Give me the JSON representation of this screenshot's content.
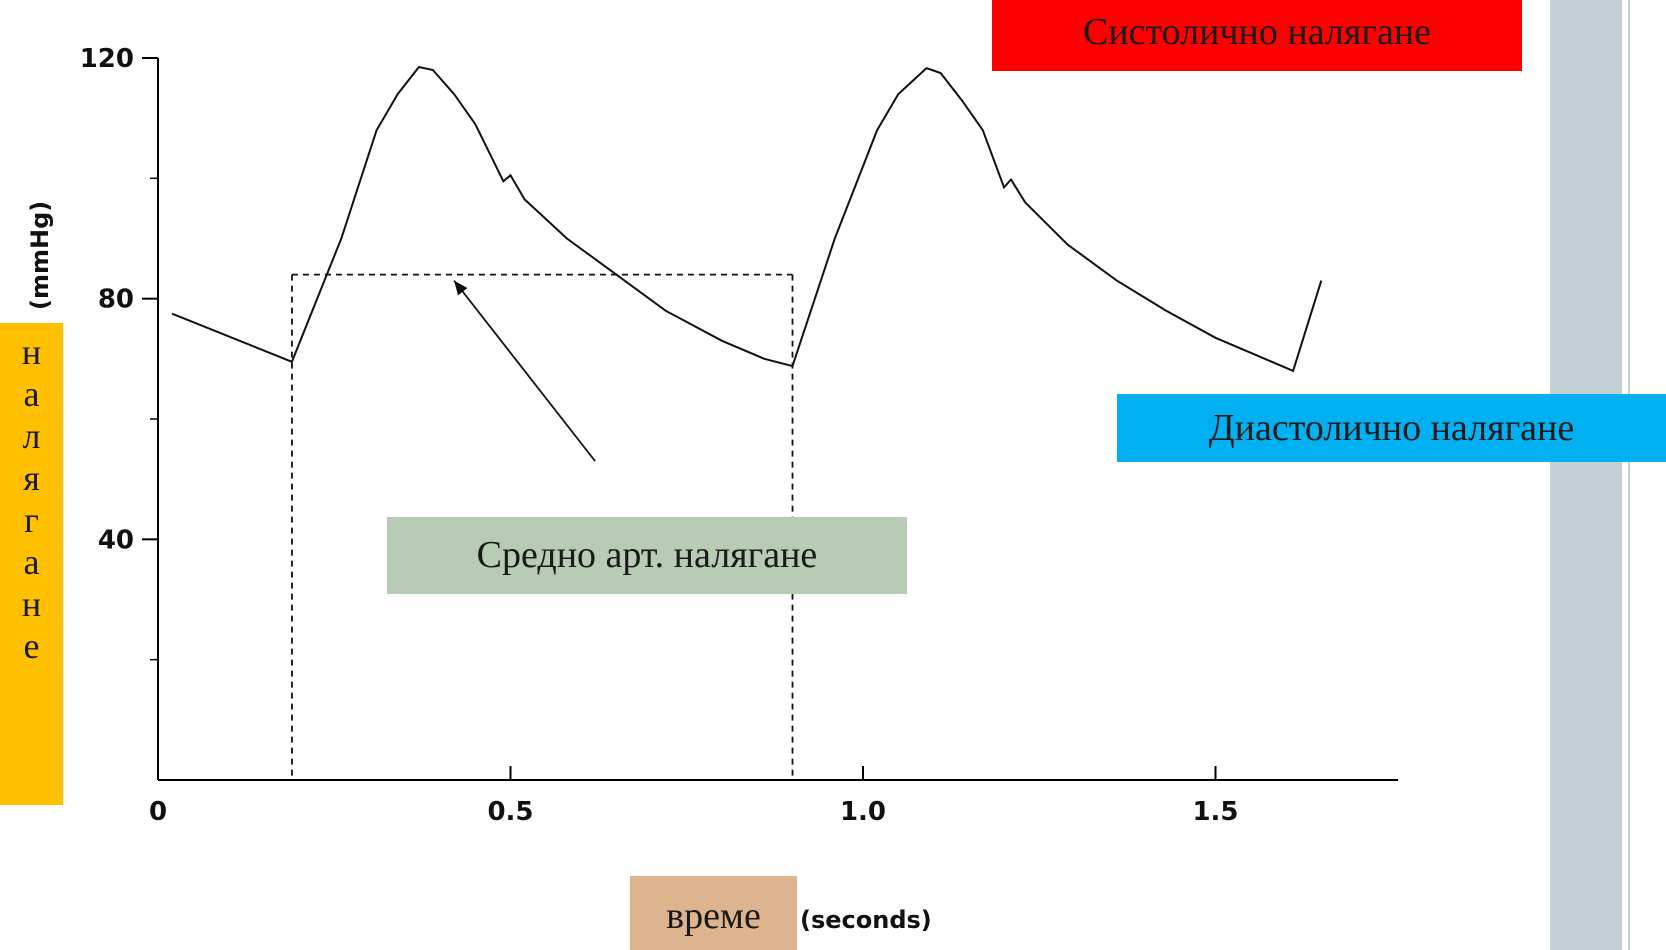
{
  "labels": {
    "systolic": "Систолично налягане",
    "diastolic": "Диастолично налягане",
    "mean": "Средно арт. налягане",
    "time": "време",
    "pressure_chars": [
      "н",
      "а",
      "л",
      "я",
      "г",
      "а",
      "н",
      "е"
    ]
  },
  "colors": {
    "systolic_bg": "#ff0000",
    "diastolic_bg": "#00b0f0",
    "mean_bg": "#b7cbb5",
    "time_bg": "#ddb48e",
    "pressure_bg": "#ffc000",
    "side_bar": "#c5cfd6"
  },
  "chart_data": {
    "type": "line",
    "xlabel": "(seconds)",
    "ylabel": "(mmHg)",
    "xlim": [
      0,
      1.65
    ],
    "ylim": [
      0,
      120
    ],
    "x_ticks": [
      {
        "value": 0,
        "label": "0"
      },
      {
        "value": 0.5,
        "label": "0.5"
      },
      {
        "value": 1.0,
        "label": "1.0"
      },
      {
        "value": 1.5,
        "label": "1.5"
      }
    ],
    "y_ticks": [
      {
        "value": 40,
        "label": "40"
      },
      {
        "value": 80,
        "label": "80"
      },
      {
        "value": 120,
        "label": "120"
      }
    ],
    "y_minor_ticks": [
      20,
      60,
      100
    ],
    "series": [
      {
        "points": [
          [
            0.02,
            77.5
          ],
          [
            0.19,
            69.5
          ],
          [
            0.26,
            90.0
          ],
          [
            0.31,
            108.0
          ],
          [
            0.34,
            114.0
          ],
          [
            0.37,
            118.5
          ],
          [
            0.39,
            118.0
          ],
          [
            0.42,
            114.0
          ],
          [
            0.45,
            109.0
          ],
          [
            0.49,
            99.5
          ],
          [
            0.5,
            100.5
          ],
          [
            0.52,
            96.5
          ],
          [
            0.58,
            90.0
          ],
          [
            0.65,
            84.0
          ],
          [
            0.72,
            78.0
          ],
          [
            0.8,
            73.0
          ],
          [
            0.86,
            70.0
          ],
          [
            0.9,
            68.8
          ],
          [
            0.96,
            90.0
          ],
          [
            1.02,
            108.0
          ],
          [
            1.05,
            114.0
          ],
          [
            1.09,
            118.3
          ],
          [
            1.11,
            117.5
          ],
          [
            1.14,
            113.0
          ],
          [
            1.17,
            108.0
          ],
          [
            1.2,
            98.5
          ],
          [
            1.21,
            99.8
          ],
          [
            1.23,
            96.0
          ],
          [
            1.29,
            89.0
          ],
          [
            1.36,
            83.0
          ],
          [
            1.43,
            78.0
          ],
          [
            1.5,
            73.5
          ],
          [
            1.56,
            70.5
          ],
          [
            1.61,
            68.0
          ],
          [
            1.65,
            83.0
          ]
        ]
      }
    ],
    "mean_pressure_box": {
      "x_start": 0.19,
      "x_end": 0.9,
      "mean": 84.0
    },
    "arrow": {
      "from": [
        0.62,
        53.0
      ],
      "to": [
        0.42,
        83.0
      ]
    }
  }
}
